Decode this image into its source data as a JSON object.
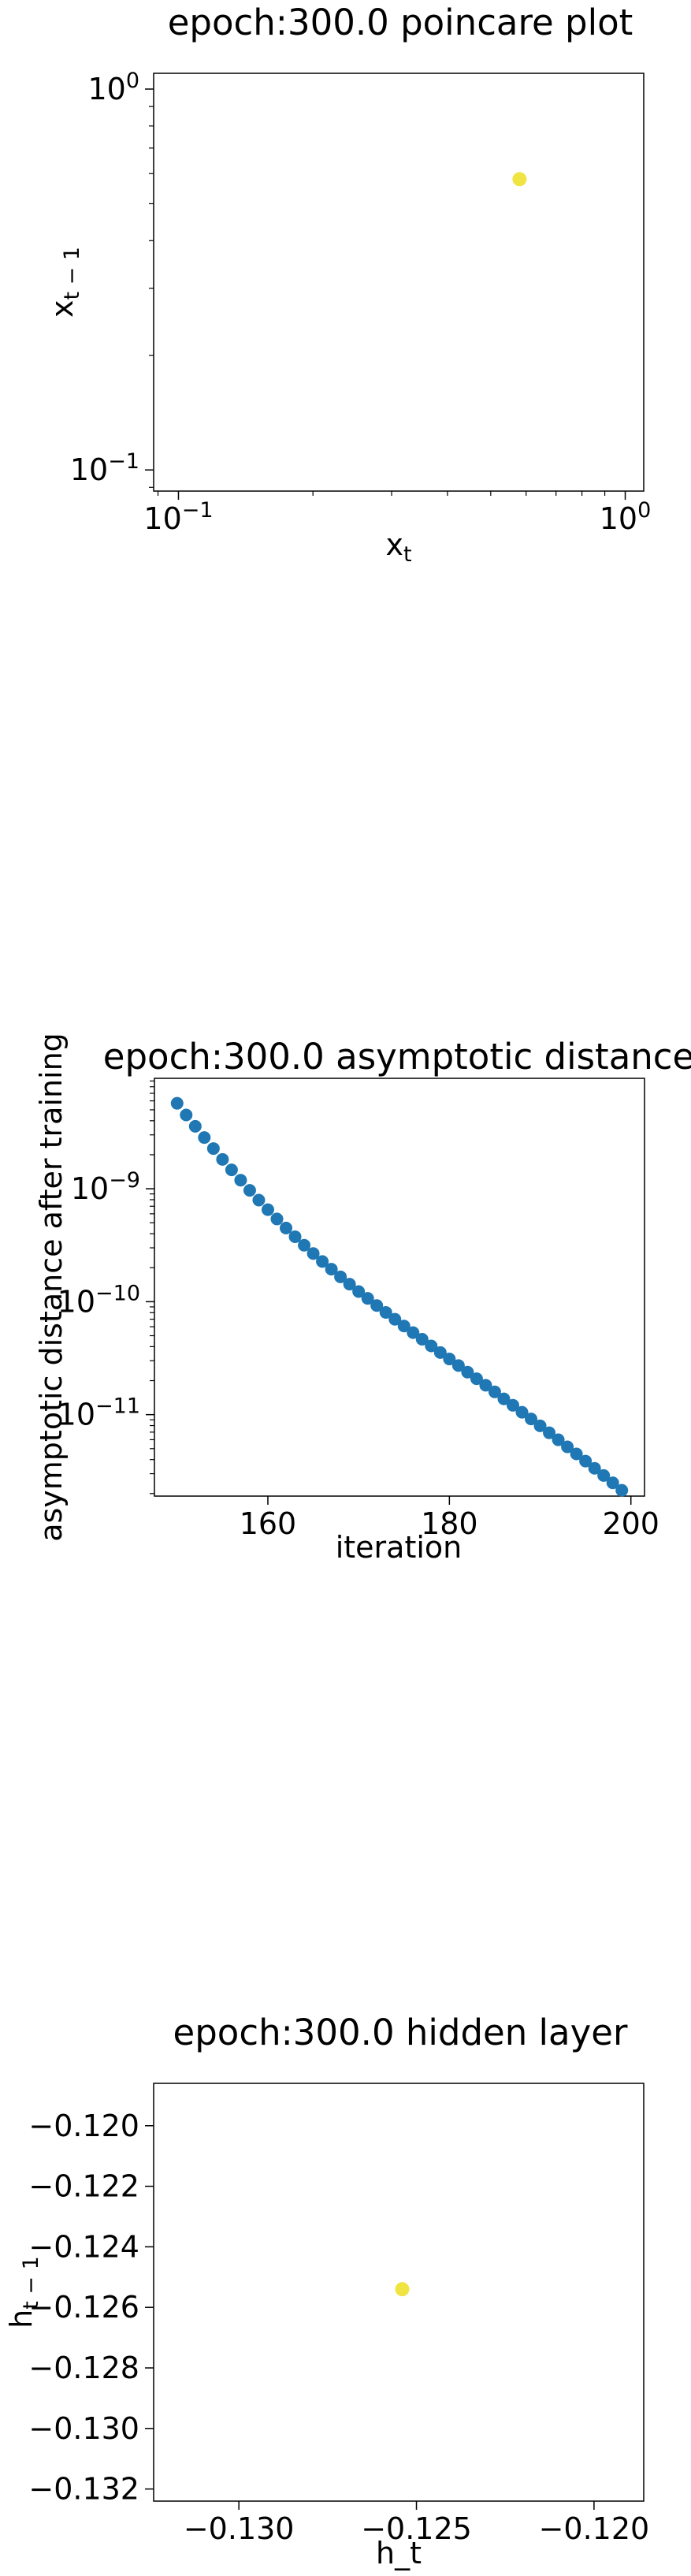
{
  "chart_data": [
    {
      "type": "scatter",
      "title": "epoch:300.0 poincare plot",
      "xlabel": "x",
      "xlabel_sub": "t",
      "ylabel": "x",
      "ylabel_sub": "t − 1",
      "xscale": "log",
      "yscale": "log",
      "xlim": [
        0.088,
        1.1
      ],
      "ylim": [
        0.088,
        1.1
      ],
      "xticks": [
        {
          "value": 0.1,
          "base": "10",
          "exp": "−1"
        },
        {
          "value": 1.0,
          "base": "10",
          "exp": "0"
        }
      ],
      "yticks": [
        {
          "value": 0.1,
          "base": "10",
          "exp": "−1"
        },
        {
          "value": 1.0,
          "base": "10",
          "exp": "0"
        }
      ],
      "grid": false,
      "marker_color": "#f0e442",
      "points": [
        {
          "x": 0.58,
          "y": 0.58
        }
      ]
    },
    {
      "type": "scatter",
      "title": "epoch:300.0 asymptotic distance",
      "xlabel": "iteration",
      "ylabel": "asymptotic distance after training",
      "xscale": "linear",
      "yscale": "log",
      "xlim": [
        147.5,
        201.5
      ],
      "ylim": [
        1.9e-12,
        9.5e-09
      ],
      "xticks": [
        {
          "value": 160,
          "label": "160"
        },
        {
          "value": 180,
          "label": "180"
        },
        {
          "value": 200,
          "label": "200"
        }
      ],
      "yticks": [
        {
          "value": 1e-09,
          "base": "10",
          "exp": "−9"
        },
        {
          "value": 1e-10,
          "base": "10",
          "exp": "−10"
        },
        {
          "value": 1e-11,
          "base": "10",
          "exp": "−11"
        }
      ],
      "grid": false,
      "marker_color": "#1f77b4",
      "points": [
        {
          "x": 150,
          "y": 5.71e-09
        },
        {
          "x": 151,
          "y": 4.5e-09
        },
        {
          "x": 152,
          "y": 3.57e-09
        },
        {
          "x": 153,
          "y": 2.84e-09
        },
        {
          "x": 154,
          "y": 2.27e-09
        },
        {
          "x": 155,
          "y": 1.82e-09
        },
        {
          "x": 156,
          "y": 1.47e-09
        },
        {
          "x": 157,
          "y": 1.19e-09
        },
        {
          "x": 158,
          "y": 9.68e-10
        },
        {
          "x": 159,
          "y": 7.93e-10
        },
        {
          "x": 160,
          "y": 6.53e-10
        },
        {
          "x": 161,
          "y": 5.4e-10
        },
        {
          "x": 162,
          "y": 4.49e-10
        },
        {
          "x": 163,
          "y": 3.76e-10
        },
        {
          "x": 164,
          "y": 3.16e-10
        },
        {
          "x": 165,
          "y": 2.67e-10
        },
        {
          "x": 166,
          "y": 2.27e-10
        },
        {
          "x": 167,
          "y": 1.94e-10
        },
        {
          "x": 168,
          "y": 1.66e-10
        },
        {
          "x": 169,
          "y": 1.43e-10
        },
        {
          "x": 170,
          "y": 1.23e-10
        },
        {
          "x": 171,
          "y": 1.07e-10
        },
        {
          "x": 172,
          "y": 9.25e-11
        },
        {
          "x": 173,
          "y": 8.04e-11
        },
        {
          "x": 174,
          "y": 6.99e-11
        },
        {
          "x": 175,
          "y": 6.09e-11
        },
        {
          "x": 176,
          "y": 5.32e-11
        },
        {
          "x": 177,
          "y": 4.65e-11
        },
        {
          "x": 178,
          "y": 4.06e-11
        },
        {
          "x": 179,
          "y": 3.55e-11
        },
        {
          "x": 180,
          "y": 3.11e-11
        },
        {
          "x": 181,
          "y": 2.72e-11
        },
        {
          "x": 182,
          "y": 2.38e-11
        },
        {
          "x": 183,
          "y": 2.08e-11
        },
        {
          "x": 184,
          "y": 1.82e-11
        },
        {
          "x": 185,
          "y": 1.59e-11
        },
        {
          "x": 186,
          "y": 1.38e-11
        },
        {
          "x": 187,
          "y": 1.21e-11
        },
        {
          "x": 188,
          "y": 1.05e-11
        },
        {
          "x": 189,
          "y": 9.16e-12
        },
        {
          "x": 190,
          "y": 7.96e-12
        },
        {
          "x": 191,
          "y": 6.91e-12
        },
        {
          "x": 192,
          "y": 5.99e-12
        },
        {
          "x": 193,
          "y": 5.19e-12
        },
        {
          "x": 194,
          "y": 4.49e-12
        },
        {
          "x": 195,
          "y": 3.88e-12
        },
        {
          "x": 196,
          "y": 3.35e-12
        },
        {
          "x": 197,
          "y": 2.89e-12
        },
        {
          "x": 198,
          "y": 2.49e-12
        },
        {
          "x": 199,
          "y": 2.14e-12
        }
      ]
    },
    {
      "type": "scatter",
      "title": "epoch:300.0 hidden layer",
      "xlabel": "h_t",
      "ylabel": "h",
      "ylabel_sub": "t − 1",
      "xscale": "linear",
      "yscale": "linear",
      "xlim": [
        -0.1324,
        -0.1186
      ],
      "ylim": [
        -0.1324,
        -0.1186
      ],
      "xticks": [
        {
          "value": -0.13,
          "label": "−0.130"
        },
        {
          "value": -0.125,
          "label": "−0.125"
        },
        {
          "value": -0.12,
          "label": "−0.120"
        }
      ],
      "yticks": [
        {
          "value": -0.12,
          "label": "−0.120"
        },
        {
          "value": -0.122,
          "label": "−0.122"
        },
        {
          "value": -0.124,
          "label": "−0.124"
        },
        {
          "value": -0.126,
          "label": "−0.126"
        },
        {
          "value": -0.128,
          "label": "−0.128"
        },
        {
          "value": -0.13,
          "label": "−0.130"
        },
        {
          "value": -0.132,
          "label": "−0.132"
        }
      ],
      "grid": false,
      "marker_color": "#f0e442",
      "points": [
        {
          "x": -0.1254,
          "y": -0.1254
        }
      ]
    }
  ]
}
